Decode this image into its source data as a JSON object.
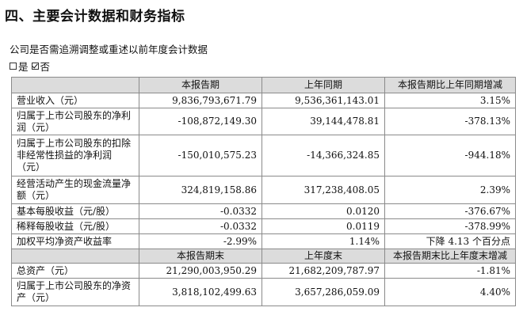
{
  "heading": "四、主要会计数据和财务指标",
  "intro": "公司是否需追溯调整或重述以前年度会计数据",
  "options": {
    "yes_label": "是",
    "no_label": "否",
    "selected": "否"
  },
  "table": {
    "header1": [
      "",
      "本报告期",
      "上年同期",
      "本报告期比上年同期增减"
    ],
    "rows1": [
      {
        "label": "营业收入（元）",
        "current": "9,836,793,671.79",
        "prior": "9,536,361,143.01",
        "change": "3.15%"
      },
      {
        "label": "归属于上市公司股东的净利润（元）",
        "current": "-108,872,149.30",
        "prior": "39,144,478.81",
        "change": "-378.13%"
      },
      {
        "label": "归属于上市公司股东的扣除非经常性损益的净利润（元）",
        "current": "-150,010,575.23",
        "prior": "-14,366,324.85",
        "change": "-944.18%"
      },
      {
        "label": "经营活动产生的现金流量净额（元）",
        "current": "324,819,158.86",
        "prior": "317,238,408.05",
        "change": "2.39%"
      },
      {
        "label": "基本每股收益（元/股）",
        "current": "-0.0332",
        "prior": "0.0120",
        "change": "-376.67%"
      },
      {
        "label": "稀释每股收益（元/股）",
        "current": "-0.0332",
        "prior": "0.0119",
        "change": "-378.99%"
      },
      {
        "label": "加权平均净资产收益率",
        "current": "-2.99%",
        "prior": "1.14%",
        "change": "下降 4.13 个百分点"
      }
    ],
    "header2": [
      "",
      "本报告期末",
      "上年度末",
      "本报告期末比上年度末增减"
    ],
    "rows2": [
      {
        "label": "总资产（元）",
        "current": "21,290,003,950.29",
        "prior": "21,682,209,787.97",
        "change": "-1.81%"
      },
      {
        "label": "归属于上市公司股东的净资产（元）",
        "current": "3,818,102,499.63",
        "prior": "3,657,286,059.09",
        "change": "4.40%"
      }
    ]
  }
}
